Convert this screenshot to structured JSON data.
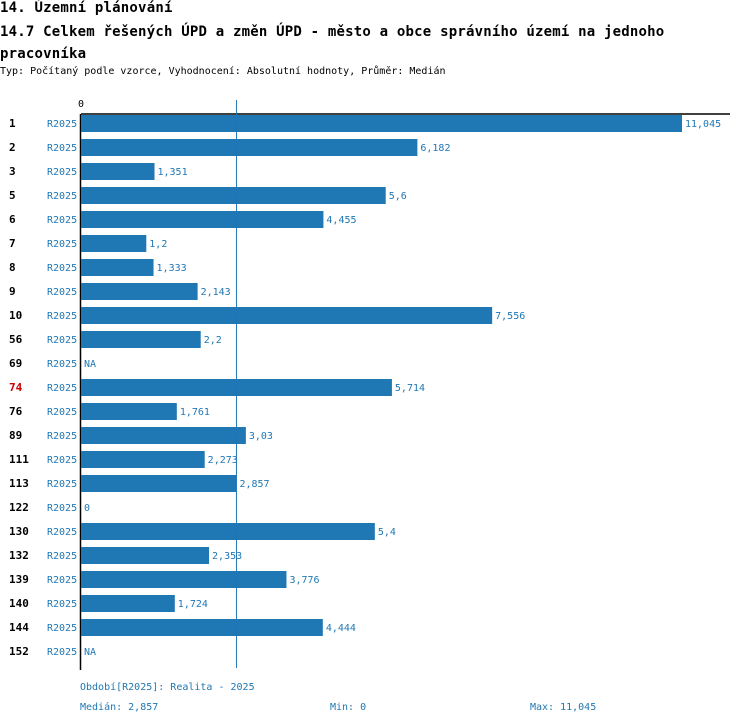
{
  "header": {
    "section_title": "14. Územní plánování",
    "chart_title": "14.7 Celkem řešených ÚPD a změn ÚPD - město a obce správního území  na jednoho pracovníka",
    "meta": "Typ: Počítaný podle vzorce, Vyhodnocení: Absolutní hodnoty, Průměr: Medián"
  },
  "colors": {
    "bar": "#1f77b4",
    "label": "#1f77b4",
    "highlight": "#cc0000",
    "text": "#000000"
  },
  "chart_data": {
    "type": "bar",
    "orientation": "horizontal",
    "axis_zero_label": "0",
    "xlim": [
      0,
      11.045
    ],
    "median": 2.857,
    "series_name": "R2025",
    "highlight_category": "74",
    "rows": [
      {
        "category": "1",
        "series": "R2025",
        "value": 11.045,
        "label": "11,045"
      },
      {
        "category": "2",
        "series": "R2025",
        "value": 6.182,
        "label": "6,182"
      },
      {
        "category": "3",
        "series": "R2025",
        "value": 1.351,
        "label": "1,351"
      },
      {
        "category": "5",
        "series": "R2025",
        "value": 5.6,
        "label": "5,6"
      },
      {
        "category": "6",
        "series": "R2025",
        "value": 4.455,
        "label": "4,455"
      },
      {
        "category": "7",
        "series": "R2025",
        "value": 1.2,
        "label": "1,2"
      },
      {
        "category": "8",
        "series": "R2025",
        "value": 1.333,
        "label": "1,333"
      },
      {
        "category": "9",
        "series": "R2025",
        "value": 2.143,
        "label": "2,143"
      },
      {
        "category": "10",
        "series": "R2025",
        "value": 7.556,
        "label": "7,556"
      },
      {
        "category": "56",
        "series": "R2025",
        "value": 2.2,
        "label": "2,2"
      },
      {
        "category": "69",
        "series": "R2025",
        "value": null,
        "label": "NA"
      },
      {
        "category": "74",
        "series": "R2025",
        "value": 5.714,
        "label": "5,714"
      },
      {
        "category": "76",
        "series": "R2025",
        "value": 1.761,
        "label": "1,761"
      },
      {
        "category": "89",
        "series": "R2025",
        "value": 3.03,
        "label": "3,03"
      },
      {
        "category": "111",
        "series": "R2025",
        "value": 2.273,
        "label": "2,273"
      },
      {
        "category": "113",
        "series": "R2025",
        "value": 2.857,
        "label": "2,857"
      },
      {
        "category": "122",
        "series": "R2025",
        "value": 0,
        "label": "0"
      },
      {
        "category": "130",
        "series": "R2025",
        "value": 5.4,
        "label": "5,4"
      },
      {
        "category": "132",
        "series": "R2025",
        "value": 2.353,
        "label": "2,353"
      },
      {
        "category": "139",
        "series": "R2025",
        "value": 3.776,
        "label": "3,776"
      },
      {
        "category": "140",
        "series": "R2025",
        "value": 1.724,
        "label": "1,724"
      },
      {
        "category": "144",
        "series": "R2025",
        "value": 4.444,
        "label": "4,444"
      },
      {
        "category": "152",
        "series": "R2025",
        "value": null,
        "label": "NA"
      }
    ]
  },
  "footer": {
    "period": "Období[R2025]: Realita - 2025",
    "median": "Medián: 2,857",
    "min": "Min: 0",
    "max": "Max: 11,045"
  }
}
